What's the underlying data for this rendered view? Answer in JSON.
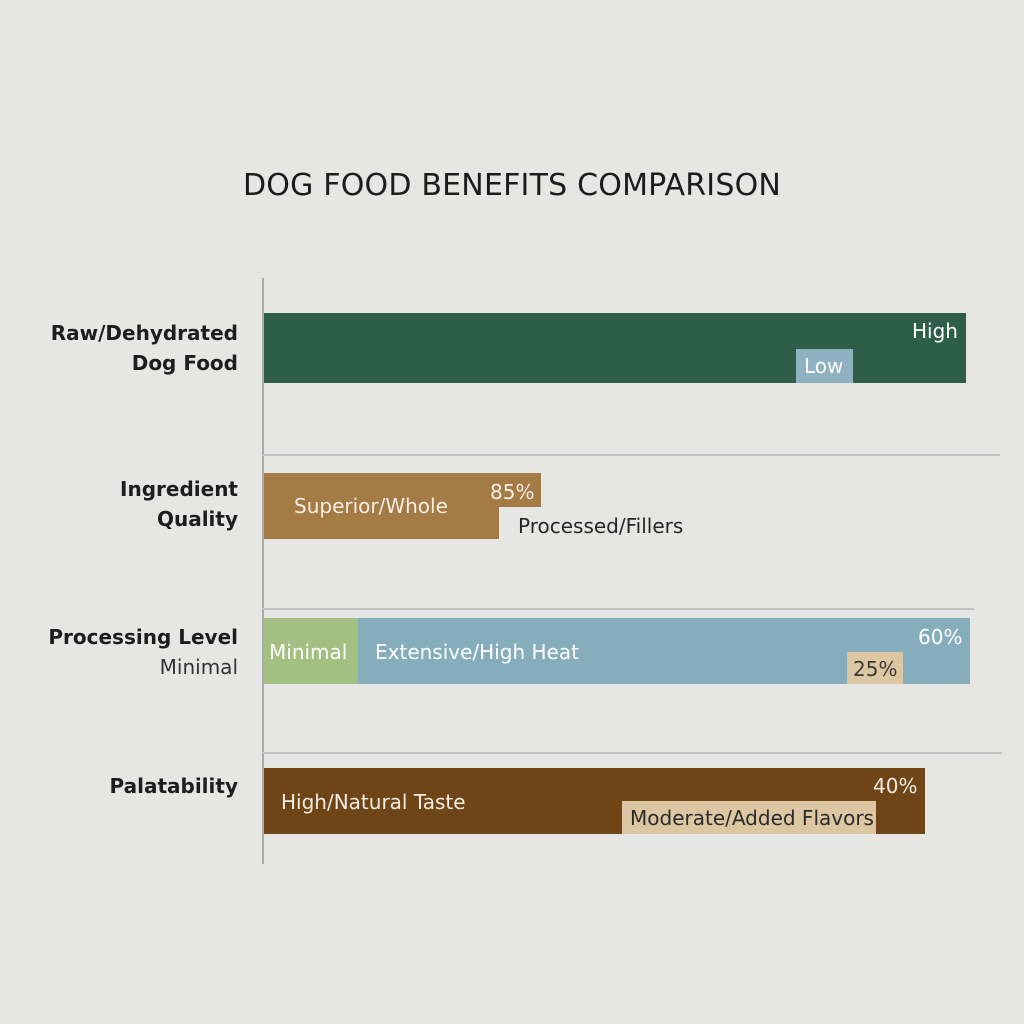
{
  "chart_data": {
    "type": "bar",
    "title": "DOG FOOD BENEFITS COMPARISON",
    "xlabel": "",
    "ylabel": "",
    "grid": false,
    "categories": [
      {
        "line1": "Raw/Dehydrated",
        "line2": "Dog Food",
        "line2_bold": true
      },
      {
        "line1": "Ingredient",
        "line2": "Quality",
        "line2_bold": true
      },
      {
        "line1": "Processing Level",
        "line2": "Minimal",
        "line2_bold": false
      },
      {
        "line1": "Palatability",
        "line2": "",
        "line2_bold": true
      }
    ],
    "segments": [
      {
        "category": 0,
        "label": "High",
        "color": "#2e5d4a",
        "text_color": "#ffffff"
      },
      {
        "category": 0,
        "label": "Low",
        "color": "#8fb1c2",
        "text_color": "#ffffff"
      },
      {
        "category": 1,
        "label": "Superior/Whole",
        "color": "#a47a45",
        "text_color": "#f6efe4"
      },
      {
        "category": 1,
        "label": "85%",
        "color": "#a47a45",
        "text_color": "#f6efe4"
      },
      {
        "category": 1,
        "label": "Processed/Fillers",
        "color": "none",
        "text_color": "#262626"
      },
      {
        "category": 2,
        "label": "Minimal",
        "color": "#a3bf82",
        "text_color": "#ffffff"
      },
      {
        "category": 2,
        "label": "Extensive/High Heat",
        "color": "#86adbb",
        "text_color": "#ffffff"
      },
      {
        "category": 2,
        "label": "60%",
        "color": "#86adbb",
        "text_color": "#ffffff"
      },
      {
        "category": 2,
        "label": "25%",
        "color": "#dcc7a2",
        "text_color": "#3a3a3a"
      },
      {
        "category": 3,
        "label": "High/Natural Taste",
        "color": "#6f4517",
        "text_color": "#f3ece2"
      },
      {
        "category": 3,
        "label": "40%",
        "color": "#6f4517",
        "text_color": "#f3ece2"
      },
      {
        "category": 3,
        "label": "Moderate/Added Flavors",
        "color": "#dcc7a2",
        "text_color": "#2b2b2b"
      }
    ]
  }
}
